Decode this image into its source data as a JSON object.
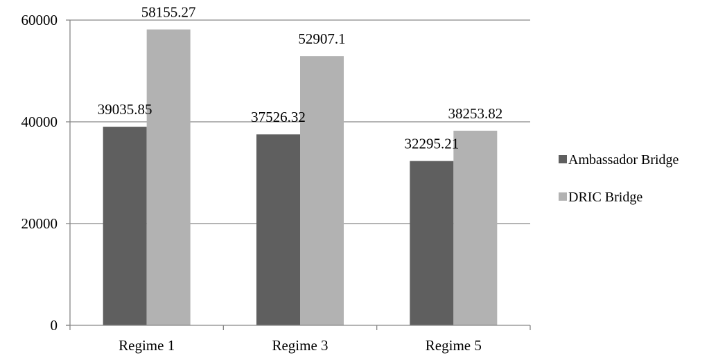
{
  "chart_data": {
    "type": "bar",
    "title": "",
    "xlabel": "",
    "ylabel": "",
    "categories": [
      "Regime 1",
      "Regime 3",
      "Regime 5"
    ],
    "series": [
      {
        "name": "Ambassador Bridge",
        "values": [
          39035.85,
          37526.32,
          32295.21
        ],
        "labels": [
          "39035.85",
          "37526.32",
          "32295.21"
        ],
        "color": "#5f5f5f"
      },
      {
        "name": "DRIC Bridge",
        "values": [
          58155.27,
          52907.1,
          38253.82
        ],
        "labels": [
          "58155.27",
          "52907.1",
          "38253.82"
        ],
        "color": "#b2b2b2"
      }
    ],
    "ylim": [
      0,
      60000
    ],
    "yticks": [
      0,
      20000,
      40000,
      60000
    ],
    "ytick_labels": [
      "0",
      "20000",
      "40000",
      "60000"
    ],
    "grid": true,
    "legend_position": "right"
  }
}
